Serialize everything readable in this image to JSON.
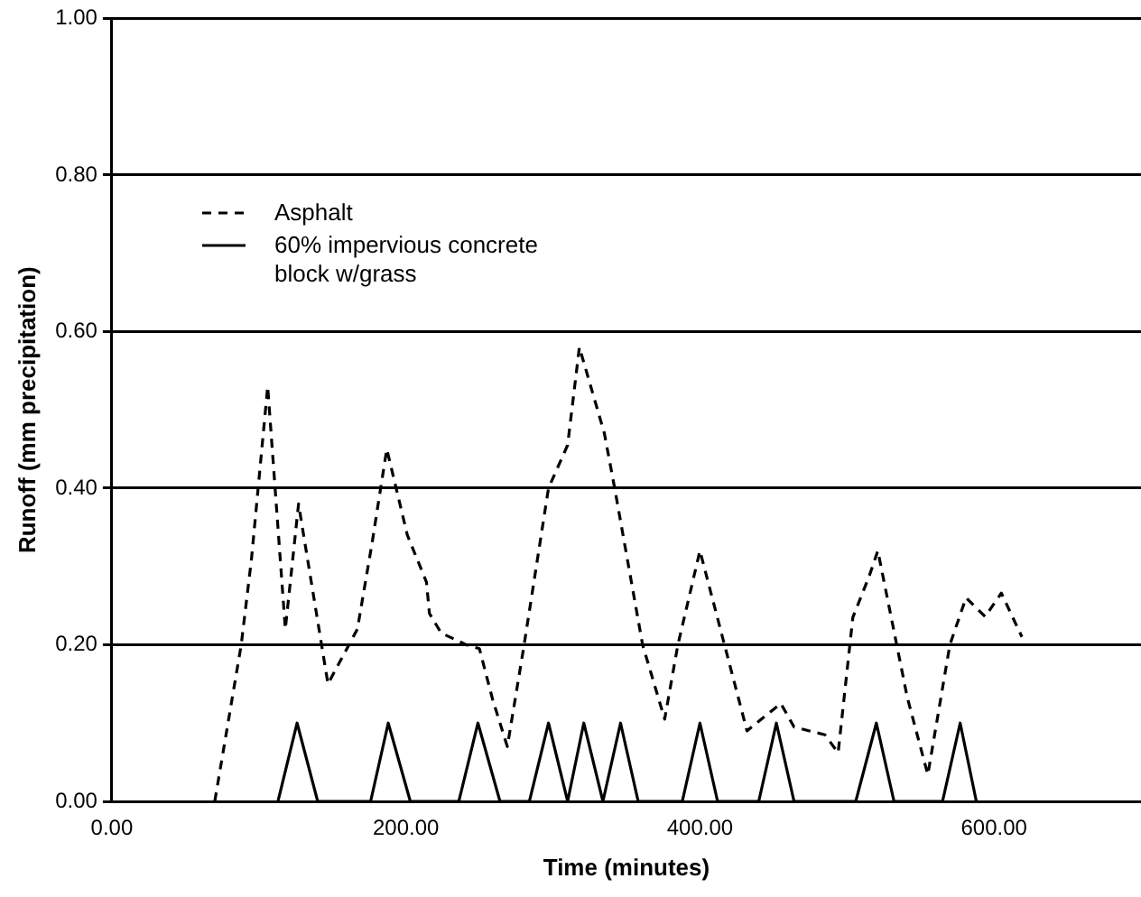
{
  "chart_data": {
    "type": "line",
    "xlabel": "Time (minutes)",
    "ylabel": "Runoff (mm precipitation)",
    "xlim": [
      0,
      700
    ],
    "xticks": [
      {
        "value": 0,
        "label": "0.00"
      },
      {
        "value": 200,
        "label": "200.00"
      },
      {
        "value": 400,
        "label": "400.00"
      },
      {
        "value": 600,
        "label": "600.00"
      }
    ],
    "ylim": [
      0,
      1
    ],
    "yticks": [
      {
        "value": 0,
        "label": "0.00"
      },
      {
        "value": 0.2,
        "label": "0.20"
      },
      {
        "value": 0.4,
        "label": "0.40"
      },
      {
        "value": 0.6,
        "label": "0.60"
      },
      {
        "value": 0.8,
        "label": "0.80"
      },
      {
        "value": 1,
        "label": "1.00"
      }
    ],
    "grid": "y",
    "legend": "top left",
    "marker": "none",
    "series": [
      {
        "name": "Asphalt",
        "color": "#000000",
        "line_style": "dashed",
        "x": [
          70,
          88,
          95,
          106,
          118,
          127,
          130,
          147,
          167,
          177,
          187,
          201,
          214,
          216,
          224,
          241,
          250,
          259,
          269,
          280,
          297,
          310,
          318,
          335,
          342,
          361,
          376,
          385,
          400,
          432,
          455,
          464,
          485,
          494,
          504,
          515,
          521,
          541,
          555,
          570,
          581,
          594,
          605,
          619
        ],
        "values": [
          0,
          0.2,
          0.31,
          0.53,
          0.22,
          0.38,
          0.345,
          0.15,
          0.22,
          0.33,
          0.45,
          0.34,
          0.28,
          0.24,
          0.215,
          0.2,
          0.195,
          0.13,
          0.07,
          0.195,
          0.4,
          0.455,
          0.58,
          0.47,
          0.4,
          0.2,
          0.105,
          0.2,
          0.32,
          0.09,
          0.125,
          0.095,
          0.085,
          0.062,
          0.235,
          0.287,
          0.32,
          0.133,
          0.034,
          0.2,
          0.26,
          0.236,
          0.266,
          0.21
        ]
      },
      {
        "name": "60% impervious concrete block w/grass",
        "color": "#000000",
        "line_style": "solid",
        "x": [
          113,
          126,
          140,
          176,
          188,
          203,
          236,
          249,
          264,
          284,
          297,
          310,
          321,
          334,
          346,
          358,
          388,
          400,
          412,
          440,
          452,
          464,
          506,
          520,
          532,
          565,
          577,
          588
        ],
        "values": [
          0,
          0.1,
          0,
          0,
          0.1,
          0,
          0,
          0.1,
          0,
          0,
          0.1,
          0,
          0.1,
          0,
          0.1,
          0,
          0,
          0.1,
          0,
          0,
          0.1,
          0,
          0,
          0.1,
          0,
          0,
          0.1,
          0
        ]
      }
    ]
  }
}
